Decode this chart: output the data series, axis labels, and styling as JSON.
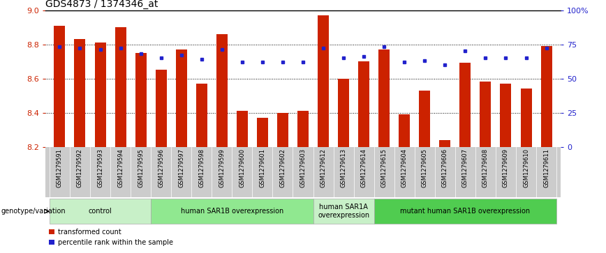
{
  "title": "GDS4873 / 1374346_at",
  "samples": [
    "GSM1279591",
    "GSM1279592",
    "GSM1279593",
    "GSM1279594",
    "GSM1279595",
    "GSM1279596",
    "GSM1279597",
    "GSM1279598",
    "GSM1279599",
    "GSM1279600",
    "GSM1279601",
    "GSM1279602",
    "GSM1279603",
    "GSM1279612",
    "GSM1279613",
    "GSM1279614",
    "GSM1279615",
    "GSM1279604",
    "GSM1279605",
    "GSM1279606",
    "GSM1279607",
    "GSM1279608",
    "GSM1279609",
    "GSM1279610",
    "GSM1279611"
  ],
  "bar_values": [
    8.91,
    8.83,
    8.81,
    8.9,
    8.75,
    8.65,
    8.77,
    8.57,
    8.86,
    8.41,
    8.37,
    8.4,
    8.41,
    8.97,
    8.6,
    8.7,
    8.77,
    8.39,
    8.53,
    8.24,
    8.69,
    8.58,
    8.57,
    8.54,
    8.79
  ],
  "percentile_values": [
    73,
    72,
    71,
    72,
    68,
    65,
    67,
    64,
    71,
    62,
    62,
    62,
    62,
    72,
    65,
    66,
    73,
    62,
    63,
    60,
    70,
    65,
    65,
    65,
    72
  ],
  "groups": [
    {
      "label": "control",
      "start": 0,
      "end": 4,
      "color": "#c8f0c8"
    },
    {
      "label": "human SAR1B overexpression",
      "start": 5,
      "end": 12,
      "color": "#90e890"
    },
    {
      "label": "human SAR1A\noverexpression",
      "start": 13,
      "end": 15,
      "color": "#c8f0c8"
    },
    {
      "label": "mutant human SAR1B overexpression",
      "start": 16,
      "end": 24,
      "color": "#50cc50"
    }
  ],
  "y_min": 8.2,
  "y_max": 9.0,
  "y_ticks": [
    8.2,
    8.4,
    8.6,
    8.8,
    9.0
  ],
  "y_right_ticks": [
    0,
    25,
    50,
    75,
    100
  ],
  "y_right_labels": [
    "0",
    "25",
    "50",
    "75",
    "100%"
  ],
  "bar_color": "#cc2200",
  "dot_color": "#2222cc",
  "bar_width": 0.55,
  "xtick_bg_color": "#cccccc",
  "group_border_color": "#aaaaaa"
}
